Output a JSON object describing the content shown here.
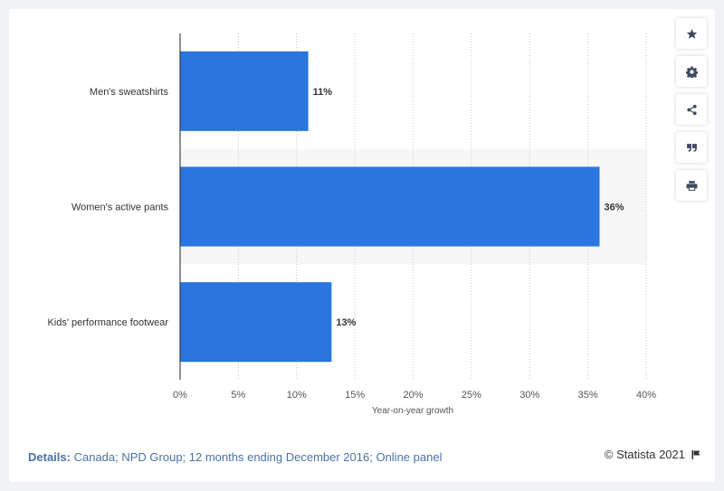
{
  "chart_data": {
    "type": "bar",
    "orientation": "horizontal",
    "categories": [
      "Men's sweatshirts",
      "Women's active pants",
      "Kids' performance footwear"
    ],
    "values": [
      11,
      36,
      13
    ],
    "value_labels": [
      "11%",
      "36%",
      "13%"
    ],
    "xlabel": "Year-on-year growth",
    "ylabel": "",
    "xlim": [
      0,
      40
    ],
    "x_ticks": [
      "0%",
      "5%",
      "10%",
      "15%",
      "20%",
      "25%",
      "30%",
      "35%",
      "40%"
    ],
    "grid": "vertical dotted",
    "bar_color": "#2a76dd"
  },
  "sidebar": {
    "buttons": [
      {
        "name": "star-icon"
      },
      {
        "name": "gear-icon"
      },
      {
        "name": "share-icon"
      },
      {
        "name": "quote-icon"
      },
      {
        "name": "print-icon"
      }
    ]
  },
  "footer": {
    "details_label": "Details:",
    "details_text": "Canada; NPD Group; 12 months ending December 2016; Online panel",
    "credit": "© Statista 2021"
  }
}
